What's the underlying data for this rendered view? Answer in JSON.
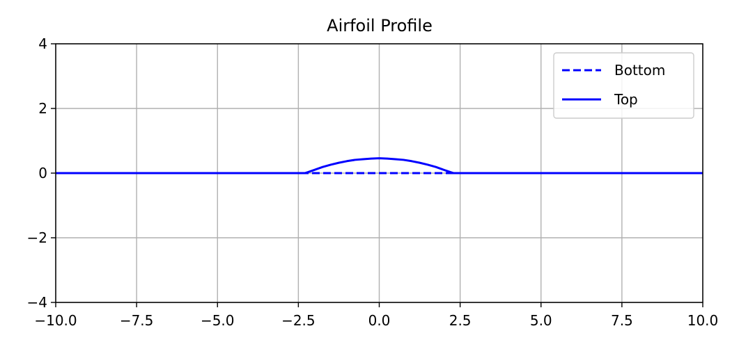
{
  "chart_data": {
    "type": "line",
    "title": "Airfoil Profile",
    "xlabel": "",
    "ylabel": "",
    "xlim": [
      -10,
      10
    ],
    "ylim": [
      -4,
      4
    ],
    "grid": true,
    "legend_position": "top-right",
    "x_ticks": [
      -10,
      -7.5,
      -5,
      -2.5,
      0,
      2.5,
      5,
      7.5,
      10
    ],
    "x_tick_labels": [
      "−10.0",
      "−7.5",
      "−5.0",
      "−2.5",
      "0.0",
      "2.5",
      "5.0",
      "7.5",
      "10.0"
    ],
    "y_ticks": [
      -4,
      -2,
      0,
      2,
      4
    ],
    "y_tick_labels": [
      "−4",
      "−2",
      "0",
      "2",
      "4"
    ],
    "series": [
      {
        "name": "Bottom",
        "color": "#0000ff",
        "style": "dashed",
        "x": [
          -10,
          -2.3,
          0,
          2.3,
          10
        ],
        "y": [
          0,
          0,
          0,
          0,
          0
        ]
      },
      {
        "name": "Top",
        "color": "#0000ff",
        "style": "solid",
        "x": [
          -10,
          -2.3,
          -2.2,
          -2.0,
          -1.75,
          -1.5,
          -1.25,
          -1.0,
          -0.75,
          -0.5,
          -0.25,
          0,
          0.25,
          0.5,
          0.75,
          1.0,
          1.25,
          1.5,
          1.75,
          2.0,
          2.2,
          2.3,
          10
        ],
        "y": [
          0,
          0,
          0.03,
          0.1,
          0.19,
          0.26,
          0.32,
          0.37,
          0.41,
          0.43,
          0.45,
          0.46,
          0.45,
          0.43,
          0.41,
          0.37,
          0.32,
          0.26,
          0.19,
          0.1,
          0.03,
          0,
          0
        ]
      }
    ]
  }
}
